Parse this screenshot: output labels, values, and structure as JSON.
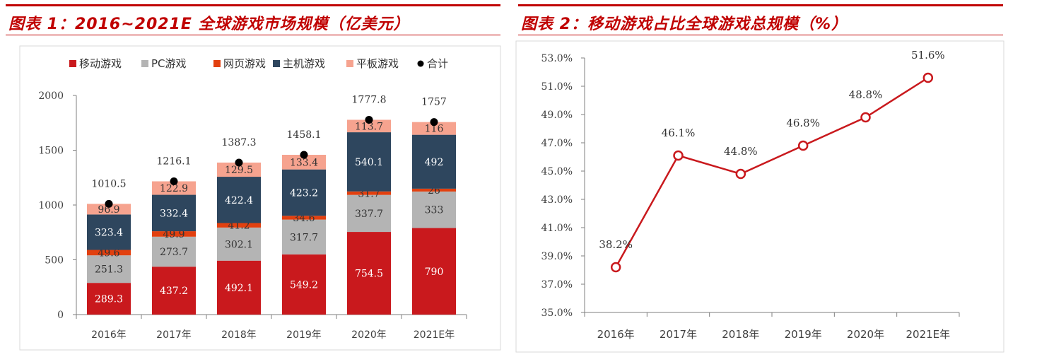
{
  "panels": {
    "left": {
      "title": "图表 1：2016~2021E 全球游戏市场规模（亿美元）"
    },
    "right": {
      "title": "图表 2：移动游戏占比全球游戏总规模（%）"
    }
  },
  "colors": {
    "mobile": "#c9191d",
    "pc": "#b4b4b4",
    "web": "#e2400f",
    "console": "#2e465e",
    "tablet": "#f6a38f",
    "total": "#000000",
    "line": "#c9191d",
    "accent": "#c00000"
  },
  "chart_data": [
    {
      "type": "bar",
      "stacked": true,
      "title": "",
      "categories": [
        "2016年",
        "2017年",
        "2018年",
        "2019年",
        "2020年",
        "2021E年"
      ],
      "ylim": [
        0,
        2000
      ],
      "yticks": [
        "0",
        "500",
        "1000",
        "1500",
        "2000"
      ],
      "ytick_values": [
        0,
        500,
        1000,
        1500,
        2000
      ],
      "legend_position": "top-left",
      "grid": false,
      "series": [
        {
          "name": "移动游戏",
          "color": "#c9191d",
          "values": [
            289.3,
            437.2,
            492.1,
            549.2,
            754.5,
            790
          ],
          "labels": [
            "289.3",
            "437.2",
            "492.1",
            "549.2",
            "754.5",
            "790"
          ],
          "label_color": "#ffffff"
        },
        {
          "name": "PC游戏",
          "color": "#b4b4b4",
          "values": [
            251.3,
            273.7,
            302.1,
            317.7,
            337.7,
            333
          ],
          "labels": [
            "251.3",
            "273.7",
            "302.1",
            "317.7",
            "337.7",
            "333"
          ],
          "label_color": "#333333"
        },
        {
          "name": "网页游戏",
          "color": "#e2400f",
          "values": [
            49.6,
            49.9,
            41.2,
            34.6,
            31.7,
            26
          ],
          "labels": [
            "49.6",
            "49.9",
            "41.2",
            "34.6",
            "31.7",
            "26"
          ],
          "label_color": "#333333"
        },
        {
          "name": "主机游戏",
          "color": "#2e465e",
          "values": [
            323.4,
            332.4,
            422.4,
            423.2,
            540.1,
            492
          ],
          "labels": [
            "323.4",
            "332.4",
            "422.4",
            "423.2",
            "540.1",
            "492"
          ],
          "label_color": "#ffffff"
        },
        {
          "name": "平板游戏",
          "color": "#f6a38f",
          "values": [
            96.9,
            122.9,
            129.5,
            133.4,
            113.7,
            116
          ],
          "labels": [
            "96.9",
            "122.9",
            "129.5",
            "133.4",
            "113.7",
            "116"
          ],
          "label_color": "#333333"
        }
      ],
      "totals": {
        "name": "合计",
        "color": "#000000",
        "values": [
          1010.5,
          1216.1,
          1387.3,
          1458.1,
          1777.8,
          1757
        ],
        "labels": [
          "1010.5",
          "1216.1",
          "1387.3",
          "1458.1",
          "1777.8",
          "1757"
        ]
      }
    },
    {
      "type": "line",
      "title": "",
      "x": [
        "2016年",
        "2017年",
        "2018年",
        "2019年",
        "2020年",
        "2021E年"
      ],
      "ylim": [
        35.0,
        53.0
      ],
      "yticks": [
        "35.0%",
        "37.0%",
        "39.0%",
        "41.0%",
        "43.0%",
        "45.0%",
        "47.0%",
        "49.0%",
        "51.0%",
        "53.0%"
      ],
      "ytick_values": [
        35,
        37,
        39,
        41,
        43,
        45,
        47,
        49,
        51,
        53
      ],
      "grid": false,
      "series": [
        {
          "color": "#c9191d",
          "values": [
            38.2,
            46.1,
            44.8,
            46.8,
            48.8,
            51.6
          ],
          "labels": [
            "38.2%",
            "46.1%",
            "44.8%",
            "46.8%",
            "48.8%",
            "51.6%"
          ]
        }
      ]
    }
  ]
}
